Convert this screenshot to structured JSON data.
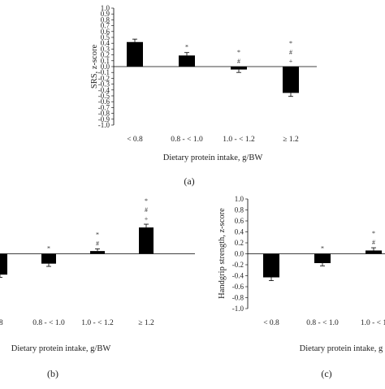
{
  "chart_data": [
    {
      "type": "bar",
      "panel": "(a)",
      "categories": [
        "< 0.8",
        "0.8 - < 1.0",
        "1.0 - < 1.2",
        "≥ 1.2"
      ],
      "values": [
        0.42,
        0.19,
        -0.05,
        -0.45
      ],
      "errors": [
        0.05,
        0.05,
        0.05,
        0.06
      ],
      "significance": [
        [],
        [
          "*"
        ],
        [
          "*",
          "#"
        ],
        [
          "*",
          "#",
          "+"
        ]
      ],
      "xlabel": "Dietary protein intake, g/BW",
      "ylabel": "SRS, z-score",
      "ylim": [
        -1.0,
        1.0
      ],
      "yticks": [
        "1.0",
        "0.9",
        "0.8",
        "0.7",
        "0.6",
        "0.5",
        "0.4",
        "0.3",
        "0.2",
        "0.1",
        "0.0",
        "-0.1",
        "-0.2",
        "-0.3",
        "-0.4",
        "-0.5",
        "-0.6",
        "-0.7",
        "-0.8",
        "-0.9",
        "-1.0"
      ],
      "color": "#000000",
      "grid": false
    },
    {
      "type": "bar",
      "panel": "(b)",
      "categories": [
        ".8",
        "0.8 - < 1.0",
        "1.0 - < 1.2",
        "≥ 1.2"
      ],
      "values": [
        -0.38,
        -0.18,
        0.05,
        0.48
      ],
      "errors": [
        0.05,
        0.05,
        0.04,
        0.06
      ],
      "significance": [
        [],
        [
          "*"
        ],
        [
          "*",
          "#"
        ],
        [
          "*",
          "#",
          "+"
        ]
      ],
      "xlabel": "Dietary protein intake, g/BW",
      "ylabel": "",
      "ylim": [
        -1.0,
        1.0
      ],
      "color": "#000000",
      "grid": false
    },
    {
      "type": "bar",
      "panel": "(c)",
      "categories": [
        "< 0.8",
        "0.8 - < 1.0",
        "1.0 - < 1"
      ],
      "values": [
        -0.43,
        -0.17,
        0.06
      ],
      "errors": [
        0.06,
        0.05,
        0.05
      ],
      "significance": [
        [],
        [
          "*"
        ],
        [
          "*",
          "#"
        ]
      ],
      "xlabel": "Dietary protein intake, g",
      "ylabel": "Handgrip strength, z-score",
      "ylim": [
        -1.0,
        1.0
      ],
      "yticks": [
        "1.0",
        "0.8",
        "0.6",
        "0.4",
        "0.2",
        "0.0",
        "-0.2",
        "-0.4",
        "-0.6",
        "-0.8",
        "-1.0"
      ],
      "color": "#000000",
      "grid": false
    }
  ]
}
